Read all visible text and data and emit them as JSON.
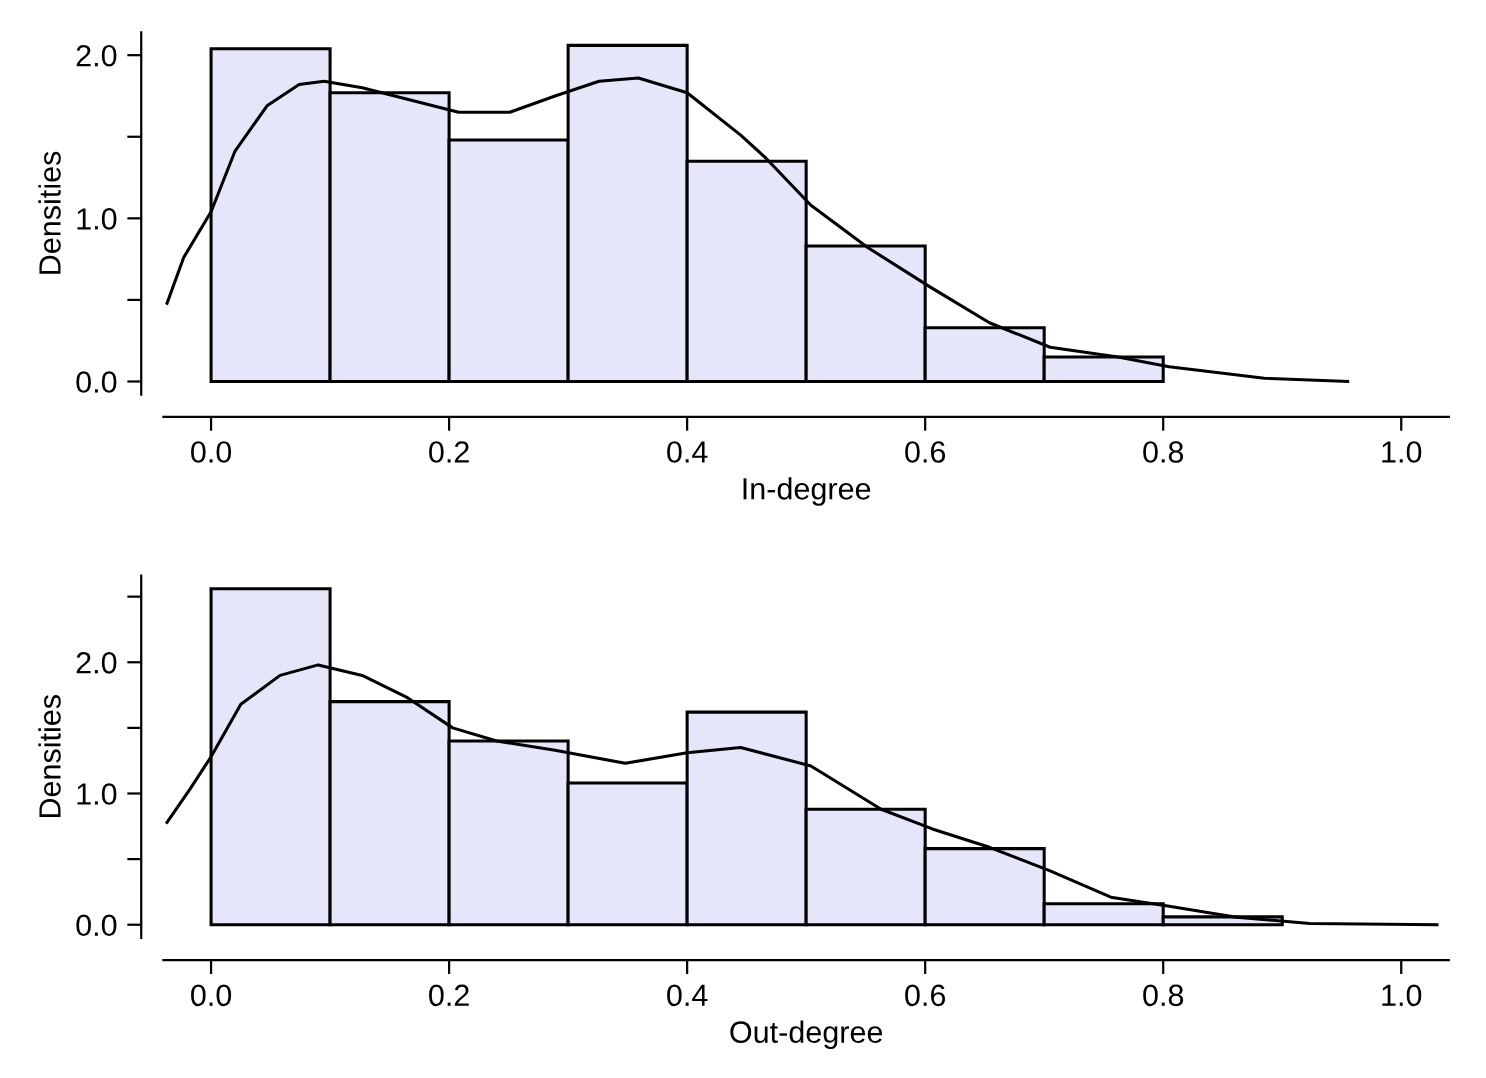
{
  "chart_data": [
    {
      "type": "histogram",
      "xlabel": "In-degree",
      "ylabel": "Densities",
      "bins": [
        0,
        0.1,
        0.2,
        0.3,
        0.4,
        0.5,
        0.6,
        0.7,
        0.8
      ],
      "values": [
        2.04,
        1.77,
        1.48,
        2.06,
        1.35,
        0.83,
        0.33,
        0.15
      ],
      "color": "#e6e6fa",
      "series": [
        {
          "type": "line",
          "color": "#000000",
          "x": [
            -0.037,
            -0.023,
            0,
            0.02,
            0.047,
            0.074,
            0.095,
            0.127,
            0.165,
            0.208,
            0.251,
            0.289,
            0.326,
            0.359,
            0.4,
            0.445,
            0.466,
            0.504,
            0.552,
            0.604,
            0.654,
            0.705,
            0.762,
            0.805,
            0.885,
            0.955
          ],
          "values": [
            0.48,
            0.76,
            1.04,
            1.41,
            1.69,
            1.82,
            1.84,
            1.8,
            1.73,
            1.65,
            1.65,
            1.75,
            1.84,
            1.86,
            1.77,
            1.51,
            1.37,
            1.08,
            0.82,
            0.58,
            0.36,
            0.21,
            0.15,
            0.09,
            0.02,
            0.0
          ]
        }
      ],
      "xlim": [
        -0.04,
        1.04
      ],
      "xticks": [
        {
          "value": 0,
          "label": "0.0"
        },
        {
          "value": 0.2,
          "label": "0.2"
        },
        {
          "value": 0.4,
          "label": "0.4"
        },
        {
          "value": 0.6,
          "label": "0.6"
        },
        {
          "value": 0.8,
          "label": "0.8"
        },
        {
          "value": 1,
          "label": "1.0"
        }
      ],
      "ylim": [
        -0.08,
        2.14
      ],
      "yticks": [
        {
          "value": 0,
          "label": "0.0"
        },
        {
          "value": 0.5,
          "label": null
        },
        {
          "value": 1,
          "label": "1.0"
        },
        {
          "value": 1.5,
          "label": null
        },
        {
          "value": 2,
          "label": "2.0"
        }
      ],
      "grid": false,
      "legend": false
    },
    {
      "type": "histogram",
      "xlabel": "Out-degree",
      "ylabel": "Densities",
      "bins": [
        0,
        0.1,
        0.2,
        0.3,
        0.4,
        0.5,
        0.6,
        0.7,
        0.8,
        0.9
      ],
      "values": [
        2.56,
        1.7,
        1.4,
        1.08,
        1.62,
        0.88,
        0.58,
        0.16,
        0.06
      ],
      "color": "#e6e6fa",
      "series": [
        {
          "type": "line",
          "color": "#000000",
          "x": [
            -0.037,
            -0.018,
            0,
            0.025,
            0.058,
            0.09,
            0.127,
            0.165,
            0.203,
            0.24,
            0.289,
            0.348,
            0.4,
            0.445,
            0.504,
            0.563,
            0.606,
            0.654,
            0.705,
            0.756,
            0.805,
            0.859,
            0.923,
            1.03
          ],
          "values": [
            0.78,
            1.03,
            1.28,
            1.68,
            1.9,
            1.98,
            1.9,
            1.73,
            1.5,
            1.4,
            1.33,
            1.23,
            1.31,
            1.35,
            1.21,
            0.88,
            0.73,
            0.59,
            0.41,
            0.21,
            0.14,
            0.06,
            0.01,
            0.0
          ]
        }
      ],
      "xlim": [
        -0.04,
        1.04
      ],
      "xticks": [
        {
          "value": 0,
          "label": "0.0"
        },
        {
          "value": 0.2,
          "label": "0.2"
        },
        {
          "value": 0.4,
          "label": "0.4"
        },
        {
          "value": 0.6,
          "label": "0.6"
        },
        {
          "value": 0.8,
          "label": "0.8"
        },
        {
          "value": 1,
          "label": "1.0"
        }
      ],
      "ylim": [
        -0.1,
        2.66
      ],
      "yticks": [
        {
          "value": 0,
          "label": "0.0"
        },
        {
          "value": 0.5,
          "label": null
        },
        {
          "value": 1,
          "label": "1.0"
        },
        {
          "value": 1.5,
          "label": null
        },
        {
          "value": 2,
          "label": "2.0"
        },
        {
          "value": 2.5,
          "label": null
        }
      ],
      "grid": false,
      "legend": false
    }
  ]
}
